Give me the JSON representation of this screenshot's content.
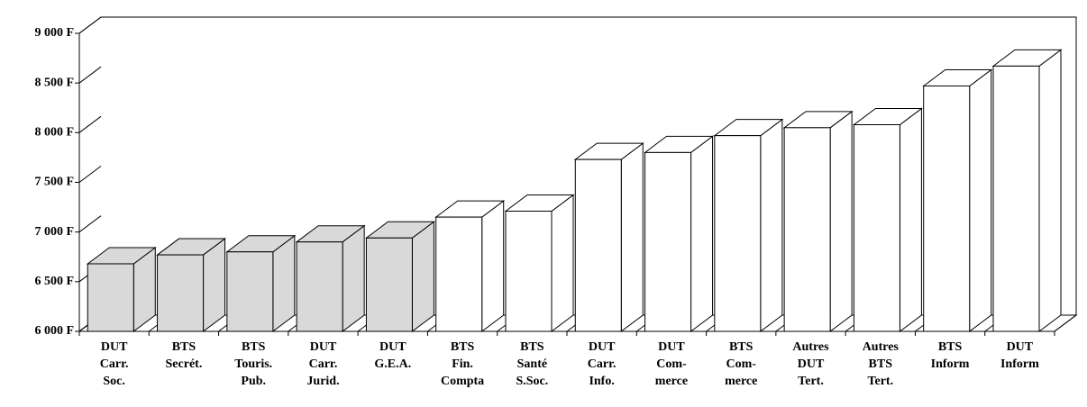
{
  "chart_data": {
    "type": "bar3d",
    "categories": [
      [
        "DUT",
        "Carr.",
        "Soc."
      ],
      [
        "BTS",
        "Secrét."
      ],
      [
        "BTS",
        "Touris.",
        "Pub."
      ],
      [
        "DUT",
        "Carr.",
        "Jurid."
      ],
      [
        "DUT",
        "G.E.A."
      ],
      [
        "BTS",
        "Fin.",
        "Compta"
      ],
      [
        "BTS",
        "Santé",
        "S.Soc."
      ],
      [
        "DUT",
        "Carr.",
        "Info."
      ],
      [
        "DUT",
        "Com-",
        "merce"
      ],
      [
        "BTS",
        "Com-",
        "merce"
      ],
      [
        "Autres",
        "DUT",
        "Tert."
      ],
      [
        "Autres",
        "BTS",
        "Tert."
      ],
      [
        "BTS",
        "Inform"
      ],
      [
        "DUT",
        "Inform"
      ]
    ],
    "values": [
      6680,
      6770,
      6800,
      6900,
      6940,
      7150,
      7210,
      7730,
      7800,
      7970,
      8050,
      8080,
      8470,
      8670
    ],
    "colors": [
      "#d9d9d9",
      "#d9d9d9",
      "#d9d9d9",
      "#d9d9d9",
      "#d9d9d9",
      "#ffffff",
      "#ffffff",
      "#ffffff",
      "#ffffff",
      "#ffffff",
      "#ffffff",
      "#ffffff",
      "#ffffff",
      "#ffffff"
    ],
    "ylim": [
      6000,
      9000
    ],
    "yticks": [
      {
        "value": 6000,
        "label": "6 000 F"
      },
      {
        "value": 6500,
        "label": "6 500 F"
      },
      {
        "value": 7000,
        "label": "7 000 F"
      },
      {
        "value": 7500,
        "label": "7 500 F"
      },
      {
        "value": 8000,
        "label": "8 000 F"
      },
      {
        "value": 8500,
        "label": "8 500 F"
      },
      {
        "value": 9000,
        "label": "9 000 F"
      }
    ],
    "grid": false
  }
}
